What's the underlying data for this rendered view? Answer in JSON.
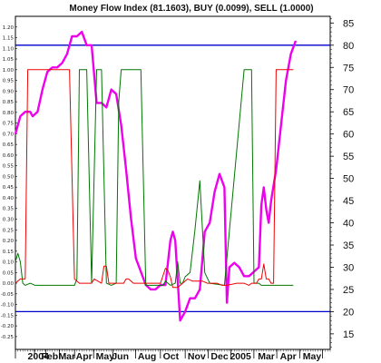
{
  "chart_data": {
    "type": "line",
    "title": "Money Flow Index (81.1603), BUY (0.0099), SELL (1.0000)",
    "right_axis": {
      "ticks": [
        "15",
        "20",
        "25",
        "30",
        "35",
        "40",
        "45",
        "50",
        "55",
        "60",
        "65",
        "70",
        "75",
        "80",
        "85"
      ],
      "ylim": [
        11.5,
        86.5
      ]
    },
    "left_axis": {
      "ticks": [
        "-0.25",
        "-0.20",
        "-0.15",
        "-0.10",
        "-0.05",
        "0.00",
        "0.05",
        "0.10",
        "0.15",
        "0.20",
        "0.25",
        "0.30",
        "0.35",
        "0.40",
        "0.45",
        "0.50",
        "0.55",
        "0.60",
        "0.65",
        "0.70",
        "0.75",
        "0.80",
        "0.85",
        "0.90",
        "0.95",
        "1.00",
        "1.05",
        "1.10",
        "1.15",
        "1.20"
      ],
      "ylim": [
        -0.31,
        1.25
      ]
    },
    "x_labels": [
      "2004",
      "Feb",
      "Mar",
      "Apr",
      "May",
      "Jun",
      "Aug",
      "Oct",
      "Nov",
      "Dec",
      "2005",
      "Mar",
      "Apr",
      "May"
    ],
    "reference_lines": [
      {
        "value": 80,
        "color": "#0000cc"
      },
      {
        "value": 20,
        "color": "#0000cc"
      }
    ],
    "series": [
      {
        "color": "#ee00ee",
        "axis": "right",
        "width": 2.4,
        "values": [
          [
            0,
            60
          ],
          [
            2,
            64
          ],
          [
            4,
            65
          ],
          [
            6,
            65
          ],
          [
            7,
            64
          ],
          [
            9,
            65
          ],
          [
            11,
            70
          ],
          [
            13,
            74
          ],
          [
            15,
            75
          ],
          [
            17,
            75
          ],
          [
            19,
            76
          ],
          [
            21,
            78
          ],
          [
            23,
            82
          ],
          [
            25,
            82
          ],
          [
            27,
            83
          ],
          [
            29,
            80
          ],
          [
            31,
            80
          ],
          [
            33,
            67
          ],
          [
            35,
            67
          ],
          [
            37,
            66
          ],
          [
            39,
            70
          ],
          [
            41,
            69
          ],
          [
            43,
            62
          ],
          [
            45,
            52
          ],
          [
            47,
            41
          ],
          [
            49,
            32
          ],
          [
            51,
            29
          ],
          [
            53,
            26
          ],
          [
            55,
            25
          ],
          [
            57,
            25
          ],
          [
            59,
            26
          ],
          [
            61,
            26
          ],
          [
            63,
            36
          ],
          [
            64,
            38
          ],
          [
            65,
            36
          ],
          [
            67,
            18
          ],
          [
            69,
            20
          ],
          [
            71,
            23
          ],
          [
            73,
            23
          ],
          [
            75,
            25
          ],
          [
            77,
            38
          ],
          [
            79,
            40
          ],
          [
            81,
            47
          ],
          [
            83,
            51
          ],
          [
            85,
            48
          ],
          [
            86,
            22
          ],
          [
            87,
            30
          ],
          [
            89,
            31
          ],
          [
            91,
            30
          ],
          [
            93,
            28
          ],
          [
            95,
            28
          ],
          [
            97,
            29
          ],
          [
            99,
            30
          ],
          [
            100,
            44
          ],
          [
            101,
            48
          ],
          [
            102,
            43
          ],
          [
            103,
            40
          ],
          [
            104,
            45
          ],
          [
            106,
            52
          ],
          [
            108,
            62
          ],
          [
            110,
            72
          ],
          [
            112,
            78
          ],
          [
            114,
            81
          ]
        ]
      },
      {
        "color": "#007700",
        "axis": "left",
        "width": 1,
        "values": [
          [
            0,
            0.1
          ],
          [
            1,
            0.14
          ],
          [
            2,
            0.1
          ],
          [
            3,
            0.0
          ],
          [
            4,
            -0.01
          ],
          [
            6,
            0.0
          ],
          [
            8,
            -0.01
          ],
          [
            22,
            -0.01
          ],
          [
            24,
            -0.01
          ],
          [
            25,
            0.02
          ],
          [
            26,
            1.0
          ],
          [
            27,
            1.0
          ],
          [
            28,
            1.0
          ],
          [
            29,
            1.0
          ],
          [
            30,
            0.5
          ],
          [
            31,
            0.0
          ],
          [
            33,
            1.0
          ],
          [
            34,
            1.0
          ],
          [
            35,
            1.0
          ],
          [
            37,
            0.0
          ],
          [
            39,
            -0.01
          ],
          [
            41,
            0.0
          ],
          [
            42,
            0.85
          ],
          [
            43,
            1.0
          ],
          [
            44,
            1.0
          ],
          [
            49,
            1.0
          ],
          [
            50,
            1.0
          ],
          [
            51,
            1.0
          ],
          [
            53,
            -0.01
          ],
          [
            60,
            -0.01
          ],
          [
            61,
            0.01
          ],
          [
            62,
            0.0
          ],
          [
            63,
            -0.01
          ],
          [
            65,
            0.0
          ],
          [
            66,
            0.1
          ],
          [
            67,
            0.0
          ],
          [
            68,
            0.0
          ],
          [
            69,
            0.03
          ],
          [
            71,
            0.05
          ],
          [
            73,
            0.25
          ],
          [
            75,
            0.48
          ],
          [
            77,
            0.05
          ],
          [
            79,
            0.0
          ],
          [
            85,
            -0.01
          ],
          [
            93,
            1.0
          ],
          [
            95,
            1.0
          ],
          [
            96,
            1.0
          ],
          [
            97,
            0.0
          ],
          [
            99,
            0.0
          ],
          [
            100,
            -0.01
          ],
          [
            113,
            -0.01
          ]
        ]
      },
      {
        "color": "#ee0000",
        "axis": "left",
        "width": 1,
        "values": [
          [
            0,
            0.0
          ],
          [
            2,
            0.02
          ],
          [
            3,
            0.02
          ],
          [
            4,
            0.02
          ],
          [
            5,
            1.0
          ],
          [
            6,
            1.0
          ],
          [
            21,
            1.0
          ],
          [
            22,
            1.0
          ],
          [
            23,
            0.5
          ],
          [
            24,
            0.02
          ],
          [
            26,
            0.0
          ],
          [
            30,
            0.0
          ],
          [
            31,
            0.0
          ],
          [
            32,
            0.02
          ],
          [
            35,
            0.0
          ],
          [
            36,
            0.08
          ],
          [
            37,
            0.08
          ],
          [
            38,
            0.0
          ],
          [
            44,
            0.0
          ],
          [
            45,
            0.02
          ],
          [
            46,
            0.02
          ],
          [
            48,
            0.0
          ],
          [
            52,
            0.0
          ],
          [
            53,
            0.0
          ],
          [
            55,
            0.0
          ],
          [
            57,
            0.0
          ],
          [
            59,
            0.0
          ],
          [
            61,
            0.07
          ],
          [
            62,
            0.06
          ],
          [
            63,
            0.03
          ],
          [
            64,
            -0.02
          ],
          [
            66,
            -0.02
          ],
          [
            68,
            0.0
          ],
          [
            70,
            0.02
          ],
          [
            72,
            0.01
          ],
          [
            74,
            0.01
          ],
          [
            76,
            0.01
          ],
          [
            78,
            0.0
          ],
          [
            80,
            0.0
          ],
          [
            82,
            0.0
          ],
          [
            84,
            -0.01
          ],
          [
            86,
            -0.01
          ],
          [
            90,
            0.0
          ],
          [
            93,
            0.0
          ],
          [
            95,
            -0.01
          ],
          [
            96,
            0.0
          ],
          [
            98,
            0.0
          ],
          [
            99,
            0.02
          ],
          [
            100,
            0.02
          ],
          [
            101,
            0.09
          ],
          [
            102,
            0.02
          ],
          [
            103,
            0.02
          ],
          [
            104,
            0.0
          ],
          [
            105,
            0.0
          ],
          [
            106,
            1.0
          ],
          [
            107,
            1.0
          ],
          [
            113,
            1.0
          ]
        ]
      }
    ]
  }
}
